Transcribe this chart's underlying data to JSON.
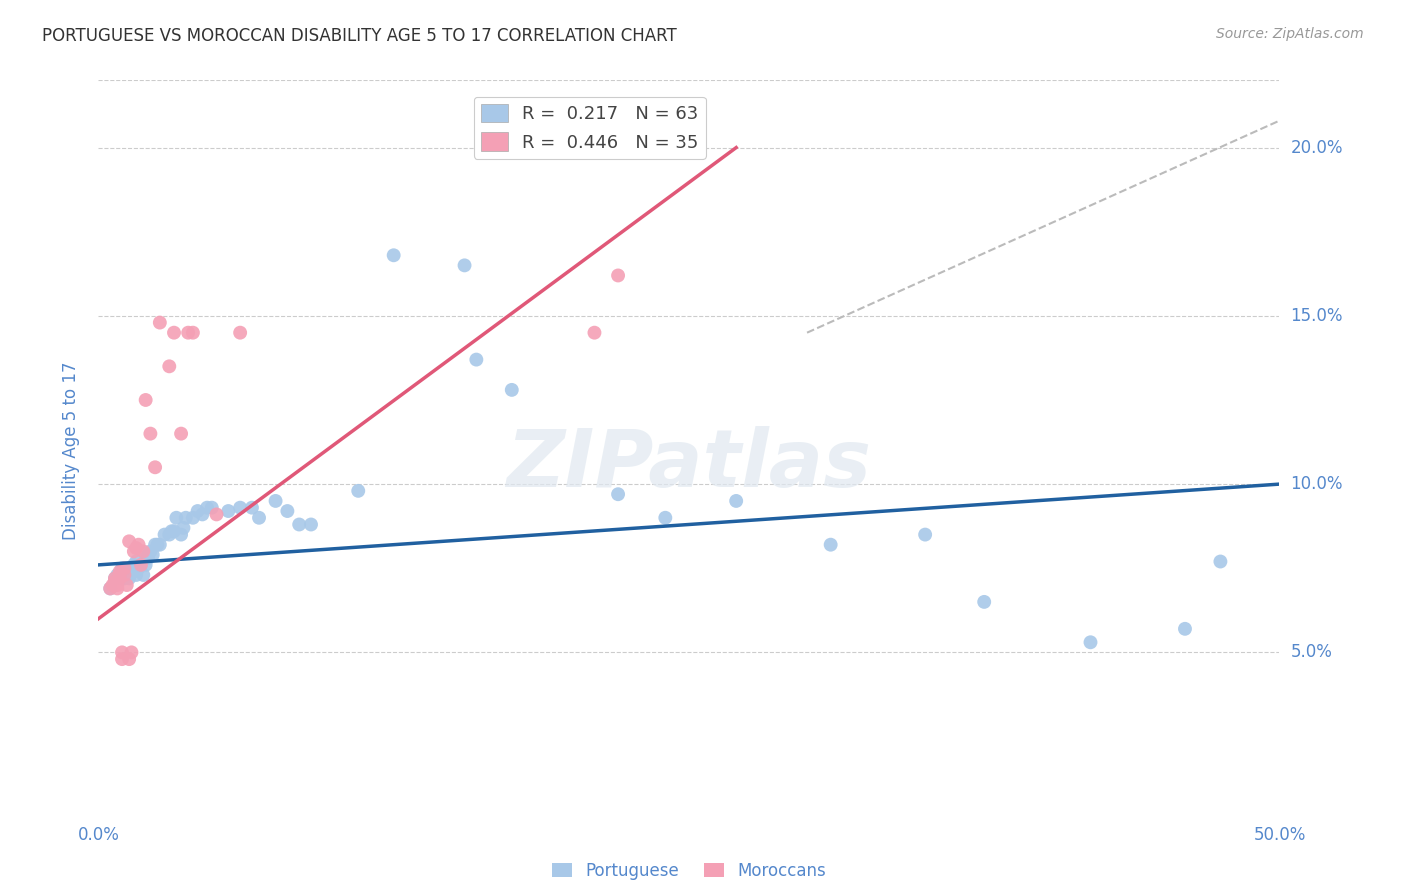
{
  "title": "PORTUGUESE VS MOROCCAN DISABILITY AGE 5 TO 17 CORRELATION CHART",
  "source": "Source: ZipAtlas.com",
  "ylabel_label": "Disability Age 5 to 17",
  "x_min": 0.0,
  "x_max": 0.5,
  "y_min": 0.0,
  "y_max": 0.22,
  "x_ticks": [
    0.0,
    0.05,
    0.1,
    0.15,
    0.2,
    0.25,
    0.3,
    0.35,
    0.4,
    0.45,
    0.5
  ],
  "x_tick_labels": [
    "0.0%",
    "",
    "",
    "",
    "",
    "",
    "",
    "",
    "",
    "",
    "50.0%"
  ],
  "y_ticks": [
    0.0,
    0.05,
    0.1,
    0.15,
    0.2
  ],
  "y_tick_labels_right": [
    "",
    "5.0%",
    "10.0%",
    "15.0%",
    "20.0%"
  ],
  "portuguese_x": [
    0.005,
    0.007,
    0.008,
    0.009,
    0.01,
    0.01,
    0.01,
    0.011,
    0.012,
    0.013,
    0.013,
    0.014,
    0.015,
    0.015,
    0.016,
    0.016,
    0.017,
    0.018,
    0.019,
    0.02,
    0.02,
    0.021,
    0.021,
    0.022,
    0.023,
    0.024,
    0.025,
    0.026,
    0.028,
    0.03,
    0.031,
    0.032,
    0.033,
    0.035,
    0.036,
    0.037,
    0.04,
    0.042,
    0.044,
    0.046,
    0.048,
    0.055,
    0.06,
    0.065,
    0.068,
    0.075,
    0.08,
    0.085,
    0.09,
    0.11,
    0.125,
    0.155,
    0.16,
    0.175,
    0.22,
    0.24,
    0.27,
    0.31,
    0.35,
    0.375,
    0.42,
    0.46,
    0.475
  ],
  "portuguese_y": [
    0.069,
    0.072,
    0.073,
    0.073,
    0.072,
    0.074,
    0.075,
    0.072,
    0.073,
    0.072,
    0.075,
    0.074,
    0.074,
    0.076,
    0.073,
    0.077,
    0.075,
    0.076,
    0.073,
    0.076,
    0.078,
    0.078,
    0.079,
    0.08,
    0.079,
    0.082,
    0.082,
    0.082,
    0.085,
    0.085,
    0.086,
    0.086,
    0.09,
    0.085,
    0.087,
    0.09,
    0.09,
    0.092,
    0.091,
    0.093,
    0.093,
    0.092,
    0.093,
    0.093,
    0.09,
    0.095,
    0.092,
    0.088,
    0.088,
    0.098,
    0.168,
    0.165,
    0.137,
    0.128,
    0.097,
    0.09,
    0.095,
    0.082,
    0.085,
    0.065,
    0.053,
    0.057,
    0.077
  ],
  "moroccan_x": [
    0.005,
    0.006,
    0.007,
    0.007,
    0.008,
    0.008,
    0.009,
    0.009,
    0.009,
    0.01,
    0.01,
    0.011,
    0.011,
    0.012,
    0.013,
    0.013,
    0.014,
    0.015,
    0.016,
    0.017,
    0.018,
    0.019,
    0.02,
    0.022,
    0.024,
    0.026,
    0.03,
    0.032,
    0.035,
    0.038,
    0.04,
    0.05,
    0.06,
    0.21,
    0.22
  ],
  "moroccan_y": [
    0.069,
    0.07,
    0.071,
    0.072,
    0.069,
    0.07,
    0.072,
    0.073,
    0.074,
    0.048,
    0.05,
    0.073,
    0.075,
    0.07,
    0.083,
    0.048,
    0.05,
    0.08,
    0.081,
    0.082,
    0.076,
    0.08,
    0.125,
    0.115,
    0.105,
    0.148,
    0.135,
    0.145,
    0.115,
    0.145,
    0.145,
    0.091,
    0.145,
    0.145,
    0.162
  ],
  "portuguese_color": "#a8c8e8",
  "moroccan_color": "#f4a0b5",
  "portuguese_line_color": "#2060a0",
  "moroccan_line_color": "#e05878",
  "trend_line_color": "#bbbbbb",
  "portuguese_line_x": [
    0.0,
    0.5
  ],
  "portuguese_line_y": [
    0.076,
    0.1
  ],
  "moroccan_line_x": [
    0.0,
    0.27
  ],
  "moroccan_line_y": [
    0.06,
    0.2
  ],
  "diag_line_x": [
    0.3,
    0.5
  ],
  "diag_line_y": [
    0.145,
    0.208
  ],
  "R_portuguese": 0.217,
  "N_portuguese": 63,
  "R_moroccan": 0.446,
  "N_moroccan": 35,
  "background_color": "#ffffff",
  "grid_color": "#cccccc",
  "title_color": "#333333",
  "axis_label_color": "#5588cc",
  "watermark_text": "ZIPatlas",
  "legend_label_portuguese": "Portuguese",
  "legend_label_moroccan": "Moroccans"
}
